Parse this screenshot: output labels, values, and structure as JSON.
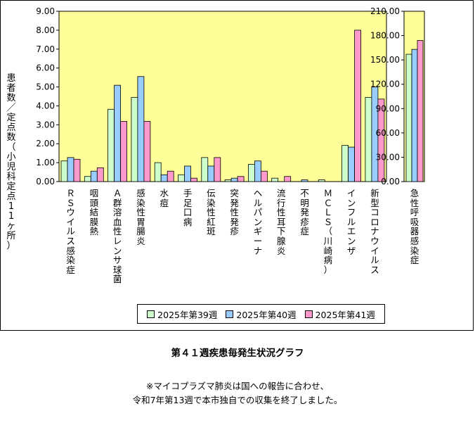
{
  "chart_data": [
    {
      "type": "bar",
      "ylabel": "患者数／定点数（小児科定点11ヶ所）",
      "ylim": [
        0,
        9
      ],
      "yticks": [
        "0.00",
        "1.00",
        "2.00",
        "3.00",
        "4.00",
        "5.00",
        "6.00",
        "7.00",
        "8.00",
        "9.00"
      ],
      "categories": [
        "ＲＳウイルス感染症",
        "咽頭結膜熱",
        "Ａ群溶血性レンサ球菌",
        "感染性胃腸炎",
        "水痘",
        "手足口病",
        "伝染性紅斑",
        "突発性発疹",
        "ヘルパンギーナ",
        "流行性耳下腺炎",
        "不明発疹症",
        "ＭＣＬＳ（川崎病）",
        "インフルエンザ",
        "新型コロナウイルス"
      ],
      "series": [
        {
          "name": "2025年第39週",
          "color": "#ccffcc",
          "values": [
            1.09,
            0.27,
            3.82,
            4.45,
            1.0,
            0.36,
            1.27,
            0.09,
            0.91,
            0.18,
            0.0,
            0.09,
            1.91,
            4.45
          ]
        },
        {
          "name": "2025年第40週",
          "color": "#99ccff",
          "values": [
            1.27,
            0.55,
            5.09,
            5.55,
            0.36,
            0.82,
            0.82,
            0.18,
            1.09,
            0.0,
            0.09,
            0.0,
            1.82,
            5.0
          ]
        },
        {
          "name": "2025年第41週",
          "color": "#ff99cc",
          "values": [
            1.18,
            0.73,
            3.18,
            3.18,
            0.55,
            0.18,
            1.27,
            0.27,
            0.55,
            0.27,
            0.0,
            0.0,
            8.0,
            4.36
          ]
        }
      ],
      "grid": false,
      "legend": "bottom"
    },
    {
      "type": "bar",
      "ylim": [
        0,
        210
      ],
      "yticks": [
        "0.00",
        "30.00",
        "60.00",
        "90.00",
        "120.00",
        "150.00",
        "180.00",
        "210.00"
      ],
      "categories": [
        "急性呼吸器感染症"
      ],
      "series": [
        {
          "name": "2025年第39週",
          "color": "#ccffcc",
          "values": [
            157
          ]
        },
        {
          "name": "2025年第40週",
          "color": "#99ccff",
          "values": [
            163
          ]
        },
        {
          "name": "2025年第41週",
          "color": "#ff99cc",
          "values": [
            174
          ]
        }
      ]
    }
  ],
  "legend_labels": [
    "2025年第39週",
    "2025年第40週",
    "2025年第41週"
  ],
  "plot_color": "#ffff99",
  "title": "第４１週疾患毎発生状況グラフ",
  "note_line1": "※マイコプラズマ肺炎は国への報告に合わせ、",
  "note_line2": "令和7年第13週で本市独自での収集を終了しました。"
}
